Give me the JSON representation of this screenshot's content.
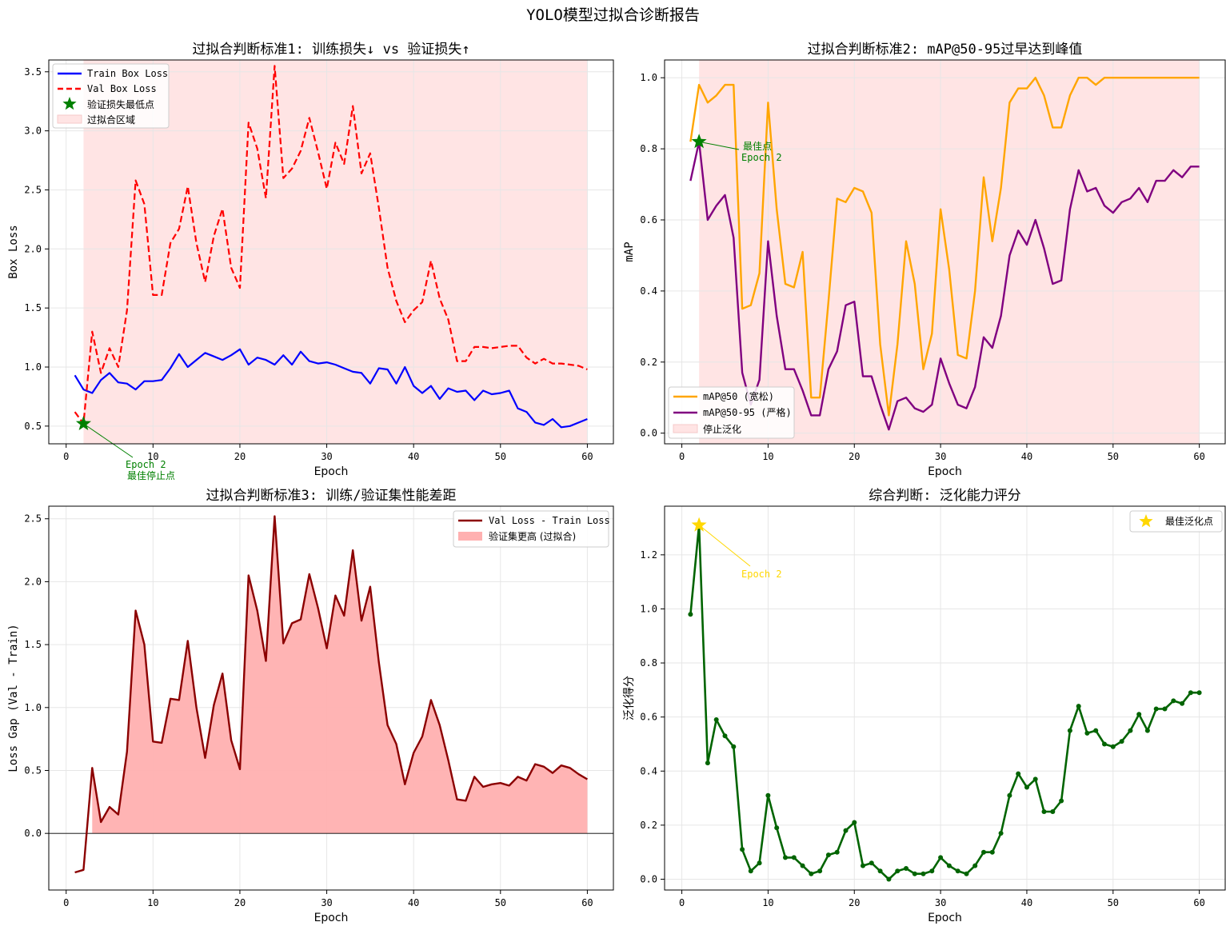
{
  "suptitle": "YOLO模型过拟合诊断报告",
  "colors": {
    "train": "#0000ff",
    "val": "#ff0000",
    "star": "#008000",
    "shade": "#ffe4e4",
    "map50": "#ffa500",
    "map5095": "#800080",
    "gap_line": "#8b0000",
    "gap_fill": "#ffb0b0",
    "score": "#006400",
    "best": "#ffd700",
    "grid": "#e6e6e6"
  },
  "chart_data": [
    {
      "type": "line",
      "title": "过拟合判断标准1: 训练损失↓ vs 验证损失↑",
      "xlabel": "Epoch",
      "ylabel": "Box Loss",
      "xlim": [
        -2,
        63
      ],
      "ylim": [
        0.35,
        3.6
      ],
      "xticks": [
        0,
        10,
        20,
        30,
        40,
        50,
        60
      ],
      "yticks": [
        0.5,
        1.0,
        1.5,
        2.0,
        2.5,
        3.0,
        3.5
      ],
      "grid": true,
      "legend_placement": "upper-left",
      "shaded_region": {
        "x": [
          2,
          60
        ],
        "label": "过拟合区域"
      },
      "x": [
        1,
        2,
        3,
        4,
        5,
        6,
        7,
        8,
        9,
        10,
        11,
        12,
        13,
        14,
        15,
        16,
        17,
        18,
        19,
        20,
        21,
        22,
        23,
        24,
        25,
        26,
        27,
        28,
        29,
        30,
        31,
        32,
        33,
        34,
        35,
        36,
        37,
        38,
        39,
        40,
        41,
        42,
        43,
        44,
        45,
        46,
        47,
        48,
        49,
        50,
        51,
        52,
        53,
        54,
        55,
        56,
        57,
        58,
        59,
        60
      ],
      "series": [
        {
          "name": "Train Box Loss",
          "style": "solid",
          "values": [
            0.93,
            0.81,
            0.78,
            0.89,
            0.95,
            0.87,
            0.86,
            0.81,
            0.88,
            0.88,
            0.89,
            0.99,
            1.11,
            1.0,
            1.06,
            1.12,
            1.09,
            1.06,
            1.1,
            1.15,
            1.02,
            1.08,
            1.06,
            1.02,
            1.1,
            1.02,
            1.13,
            1.05,
            1.03,
            1.04,
            1.02,
            0.99,
            0.96,
            0.95,
            0.86,
            0.99,
            0.98,
            0.86,
            1.0,
            0.84,
            0.78,
            0.84,
            0.73,
            0.82,
            0.79,
            0.8,
            0.72,
            0.8,
            0.77,
            0.78,
            0.8,
            0.65,
            0.62,
            0.53,
            0.51,
            0.56,
            0.49,
            0.5,
            0.53,
            0.56
          ]
        },
        {
          "name": "Val Box Loss",
          "style": "dashed",
          "values": [
            0.62,
            0.52,
            1.3,
            0.95,
            1.16,
            1.0,
            1.48,
            2.58,
            2.38,
            1.61,
            1.61,
            2.05,
            2.17,
            2.53,
            2.05,
            1.72,
            2.11,
            2.34,
            1.84,
            1.67,
            3.07,
            2.85,
            2.43,
            3.55,
            2.6,
            2.68,
            2.83,
            3.11,
            2.82,
            2.51,
            2.9,
            2.72,
            3.21,
            2.64,
            2.81,
            2.35,
            1.84,
            1.56,
            1.38,
            1.48,
            1.55,
            1.9,
            1.58,
            1.4,
            1.05,
            1.05,
            1.17,
            1.17,
            1.16,
            1.17,
            1.18,
            1.18,
            1.08,
            1.03,
            1.07,
            1.03,
            1.03,
            1.02,
            1.01,
            0.98
          ]
        }
      ],
      "markers": [
        {
          "name": "验证损失最低点",
          "x": 2,
          "y": 0.52
        }
      ],
      "annotation": {
        "text": [
          "Epoch 2",
          "最佳停止点"
        ],
        "x": 2,
        "y": 0.52
      }
    },
    {
      "type": "line",
      "title": "过拟合判断标准2: mAP@50-95过早达到峰值",
      "xlabel": "Epoch",
      "ylabel": "mAP",
      "xlim": [
        -2,
        63
      ],
      "ylim": [
        -0.03,
        1.05
      ],
      "xticks": [
        0,
        10,
        20,
        30,
        40,
        50,
        60
      ],
      "yticks": [
        0.0,
        0.2,
        0.4,
        0.6,
        0.8,
        1.0
      ],
      "grid": true,
      "legend_placement": "lower-left",
      "shaded_region": {
        "x": [
          2,
          60
        ],
        "label": "停止泛化"
      },
      "x": [
        1,
        2,
        3,
        4,
        5,
        6,
        7,
        8,
        9,
        10,
        11,
        12,
        13,
        14,
        15,
        16,
        17,
        18,
        19,
        20,
        21,
        22,
        23,
        24,
        25,
        26,
        27,
        28,
        29,
        30,
        31,
        32,
        33,
        34,
        35,
        36,
        37,
        38,
        39,
        40,
        41,
        42,
        43,
        44,
        45,
        46,
        47,
        48,
        49,
        50,
        51,
        52,
        53,
        54,
        55,
        56,
        57,
        58,
        59,
        60
      ],
      "series": [
        {
          "name": "mAP@50 (宽松)",
          "values": [
            0.82,
            0.98,
            0.93,
            0.95,
            0.98,
            0.98,
            0.35,
            0.36,
            0.45,
            0.93,
            0.63,
            0.42,
            0.41,
            0.51,
            0.1,
            0.1,
            0.37,
            0.66,
            0.65,
            0.69,
            0.68,
            0.62,
            0.25,
            0.05,
            0.25,
            0.54,
            0.42,
            0.18,
            0.28,
            0.63,
            0.46,
            0.22,
            0.21,
            0.4,
            0.72,
            0.54,
            0.69,
            0.93,
            0.97,
            0.97,
            1.0,
            0.95,
            0.86,
            0.86,
            0.95,
            1.0,
            1.0,
            0.98,
            1.0,
            1.0,
            1.0,
            1.0,
            1.0,
            1.0,
            1.0,
            1.0,
            1.0,
            1.0,
            1.0,
            1.0
          ]
        },
        {
          "name": "mAP@50-95 (严格)",
          "values": [
            0.71,
            0.82,
            0.6,
            0.64,
            0.67,
            0.55,
            0.17,
            0.08,
            0.15,
            0.54,
            0.33,
            0.18,
            0.18,
            0.12,
            0.05,
            0.05,
            0.18,
            0.23,
            0.36,
            0.37,
            0.16,
            0.16,
            0.08,
            0.01,
            0.09,
            0.1,
            0.07,
            0.06,
            0.08,
            0.21,
            0.14,
            0.08,
            0.07,
            0.13,
            0.27,
            0.24,
            0.33,
            0.5,
            0.57,
            0.53,
            0.6,
            0.52,
            0.42,
            0.43,
            0.63,
            0.74,
            0.68,
            0.69,
            0.64,
            0.62,
            0.65,
            0.66,
            0.69,
            0.65,
            0.71,
            0.71,
            0.74,
            0.72,
            0.75,
            0.75
          ]
        }
      ],
      "markers": [
        {
          "name": "最佳点",
          "x": 2,
          "y": 0.82
        }
      ],
      "annotation": {
        "text": [
          "最佳点",
          "Epoch 2"
        ],
        "x": 2,
        "y": 0.82
      }
    },
    {
      "type": "area",
      "title": "过拟合判断标准3: 训练/验证集性能差距",
      "xlabel": "Epoch",
      "ylabel": "Loss Gap (Val - Train)",
      "xlim": [
        -2,
        63
      ],
      "ylim": [
        -0.45,
        2.6
      ],
      "xticks": [
        0,
        10,
        20,
        30,
        40,
        50,
        60
      ],
      "yticks": [
        0.0,
        0.5,
        1.0,
        1.5,
        2.0,
        2.5
      ],
      "grid": true,
      "legend_placement": "upper-right",
      "zero_line": true,
      "x": [
        1,
        2,
        3,
        4,
        5,
        6,
        7,
        8,
        9,
        10,
        11,
        12,
        13,
        14,
        15,
        16,
        17,
        18,
        19,
        20,
        21,
        22,
        23,
        24,
        25,
        26,
        27,
        28,
        29,
        30,
        31,
        32,
        33,
        34,
        35,
        36,
        37,
        38,
        39,
        40,
        41,
        42,
        43,
        44,
        45,
        46,
        47,
        48,
        49,
        50,
        51,
        52,
        53,
        54,
        55,
        56,
        57,
        58,
        59,
        60
      ],
      "series": [
        {
          "name": "Val Loss - Train Loss",
          "values": [
            -0.31,
            -0.29,
            0.52,
            0.09,
            0.21,
            0.15,
            0.65,
            1.77,
            1.5,
            0.73,
            0.72,
            1.07,
            1.06,
            1.53,
            1.0,
            0.6,
            1.02,
            1.27,
            0.74,
            0.51,
            2.05,
            1.77,
            1.37,
            2.52,
            1.51,
            1.67,
            1.7,
            2.06,
            1.79,
            1.47,
            1.89,
            1.73,
            2.25,
            1.69,
            1.96,
            1.36,
            0.86,
            0.71,
            0.39,
            0.64,
            0.77,
            1.06,
            0.86,
            0.58,
            0.27,
            0.26,
            0.45,
            0.37,
            0.39,
            0.4,
            0.38,
            0.45,
            0.42,
            0.55,
            0.53,
            0.48,
            0.54,
            0.52,
            0.47,
            0.43
          ]
        },
        {
          "name": "验证集更高 (过拟合)",
          "style": "fill"
        }
      ]
    },
    {
      "type": "line",
      "title": "综合判断: 泛化能力评分",
      "xlabel": "Epoch",
      "ylabel": "泛化得分",
      "xlim": [
        -2,
        63
      ],
      "ylim": [
        -0.04,
        1.38
      ],
      "xticks": [
        0,
        10,
        20,
        30,
        40,
        50,
        60
      ],
      "yticks": [
        0.0,
        0.2,
        0.4,
        0.6,
        0.8,
        1.0,
        1.2
      ],
      "grid": true,
      "legend_placement": "upper-right",
      "x": [
        1,
        2,
        3,
        4,
        5,
        6,
        7,
        8,
        9,
        10,
        11,
        12,
        13,
        14,
        15,
        16,
        17,
        18,
        19,
        20,
        21,
        22,
        23,
        24,
        25,
        26,
        27,
        28,
        29,
        30,
        31,
        32,
        33,
        34,
        35,
        36,
        37,
        38,
        39,
        40,
        41,
        42,
        43,
        44,
        45,
        46,
        47,
        48,
        49,
        50,
        51,
        52,
        53,
        54,
        55,
        56,
        57,
        58,
        59,
        60
      ],
      "series": [
        {
          "name": "",
          "values": [
            0.98,
            1.31,
            0.43,
            0.59,
            0.53,
            0.49,
            0.11,
            0.03,
            0.06,
            0.31,
            0.19,
            0.08,
            0.08,
            0.05,
            0.02,
            0.03,
            0.09,
            0.1,
            0.18,
            0.21,
            0.05,
            0.06,
            0.03,
            0.0,
            0.03,
            0.04,
            0.02,
            0.02,
            0.03,
            0.08,
            0.05,
            0.03,
            0.02,
            0.05,
            0.1,
            0.1,
            0.17,
            0.31,
            0.39,
            0.34,
            0.37,
            0.25,
            0.25,
            0.29,
            0.55,
            0.64,
            0.54,
            0.55,
            0.5,
            0.49,
            0.51,
            0.55,
            0.61,
            0.55,
            0.63,
            0.63,
            0.66,
            0.65,
            0.69,
            0.69
          ]
        }
      ],
      "markers": [
        {
          "name": "最佳泛化点",
          "x": 2,
          "y": 1.31
        }
      ],
      "annotation": {
        "text": [
          "Epoch 2"
        ],
        "x": 2,
        "y": 1.31
      }
    }
  ]
}
